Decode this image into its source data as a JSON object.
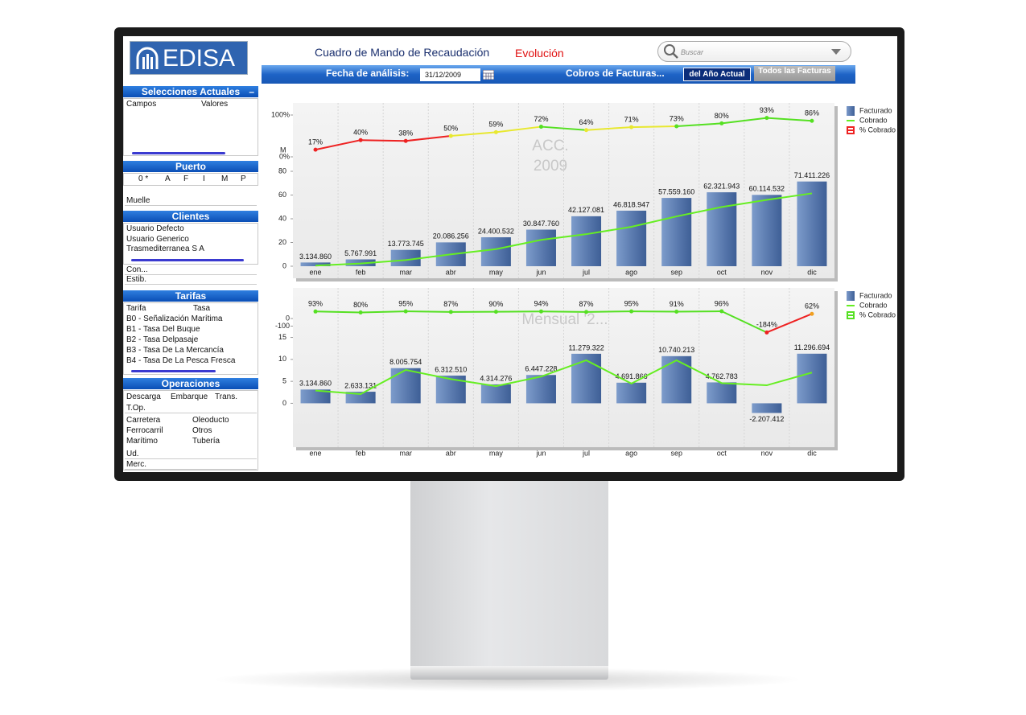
{
  "header": {
    "logo": "EDISA",
    "title": "Cuadro de Mando de Recaudación",
    "view": "Evolución",
    "search_placeholder": "Buscar",
    "date_label": "Fecha de análisis:",
    "date": "31/12/2009",
    "cobros_label": "Cobros de Facturas...",
    "buttons": [
      "del Año Actual",
      "Todos las Facturas"
    ]
  },
  "sidebar": {
    "selecciones": {
      "title": "Selecciones Actuales",
      "columns": [
        "Campos",
        "Valores"
      ]
    },
    "puerto": {
      "title": "Puerto",
      "columns": [
        "0 *",
        "A",
        "F",
        "I",
        "M",
        "P"
      ],
      "dropdown": "Muelle"
    },
    "clientes": {
      "title": "Clientes",
      "items": [
        "Usuario Defecto",
        "Usuario Generico",
        "Trasmediterranea S A"
      ],
      "dropdowns": [
        "Con...",
        "Estib."
      ]
    },
    "tarifas": {
      "title": "Tarifas",
      "columns": [
        "Tarifa",
        "Tasa"
      ],
      "items": [
        "B0 - Señalización Marítima",
        "B1 - Tasa Del Buque",
        "B2 - Tasa Delpasaje",
        "B3 - Tasa De La Mercancía",
        "B4 - Tasa De La Pesca Fresca"
      ]
    },
    "operaciones": {
      "title": "Operaciones",
      "columns": [
        "Descarga",
        "Embarque",
        "Trans."
      ],
      "dropdown": "T.Op.",
      "items": [
        "Carretera",
        "Oleoducto",
        "Ferrocarril",
        "Otros",
        "Marítimo",
        "Tubería"
      ],
      "dropdowns": [
        "Ud.",
        "Merc."
      ]
    }
  },
  "chart_data": [
    {
      "type": "combo",
      "annotation": [
        "ACC.",
        "2009"
      ],
      "y_label": "M",
      "legend": "right",
      "categories": [
        "ene",
        "feb",
        "mar",
        "abr",
        "may",
        "jun",
        "jul",
        "ago",
        "sep",
        "oct",
        "nov",
        "dic"
      ],
      "ylim": [
        0,
        80
      ],
      "yticks": [
        0,
        20,
        40,
        60,
        80
      ],
      "y2lim": [
        0,
        100
      ],
      "y2ticks": [
        {
          "value": 100,
          "label": "100%"
        },
        {
          "value": 0,
          "label": "0%"
        }
      ],
      "series": [
        {
          "name": "Facturado",
          "type": "bar",
          "color": "#5a7db0",
          "values": [
            3.13486,
            5.767991,
            13.773745,
            20.086256,
            24.400532,
            30.84776,
            42.127081,
            46.818947,
            57.55916,
            62.321943,
            60.114532,
            71.411226
          ],
          "value_labels": [
            "3.134.860",
            "5.767.991",
            "13.773.745",
            "20.086.256",
            "24.400.532",
            "30.847.760",
            "42.127.081",
            "46.818.947",
            "57.559.160",
            "62.321.943",
            "60.114.532",
            "71.411.226"
          ]
        },
        {
          "name": "Cobrado",
          "type": "line",
          "color": "#66ee22",
          "values": [
            0.5,
            2.3,
            5.2,
            10,
            14.4,
            22.2,
            27,
            33.2,
            42,
            49.9,
            55.9,
            61.4
          ]
        },
        {
          "name": "% Cobrado",
          "type": "line",
          "axis": "y2",
          "color": "#ee2222",
          "values": [
            17,
            40,
            38,
            50,
            59,
            72,
            64,
            71,
            73,
            80,
            93,
            86
          ],
          "value_labels": [
            "17%",
            "40%",
            "38%",
            "50%",
            "59%",
            "72%",
            "64%",
            "71%",
            "73%",
            "80%",
            "93%",
            "86%"
          ],
          "point_colors": [
            "#ee2222",
            "#ee2222",
            "#ee2222",
            "#e8e830",
            "#e8e830",
            "#55e022",
            "#e8e830",
            "#e8e830",
            "#55e022",
            "#55e022",
            "#55e022",
            "#55e022"
          ]
        }
      ]
    },
    {
      "type": "combo",
      "annotation": [
        "Mensual '2..."
      ],
      "legend": "right",
      "categories": [
        "ene",
        "feb",
        "mar",
        "abr",
        "may",
        "jun",
        "jul",
        "ago",
        "sep",
        "oct",
        "nov",
        "dic"
      ],
      "ylim": [
        -10,
        25
      ],
      "yticks": [
        0,
        5,
        10,
        15
      ],
      "y2lim": [
        -1700,
        330
      ],
      "y2ticks": [
        0,
        -100
      ],
      "series": [
        {
          "name": "Facturado",
          "type": "bar",
          "color": "#5a7db0",
          "values": [
            3.13486,
            2.633131,
            8.005754,
            6.31251,
            4.314276,
            6.447228,
            11.279322,
            4.691866,
            10.740213,
            4.762783,
            -2.207412,
            11.296694
          ],
          "value_labels": [
            "3.134.860",
            "2.633.131",
            "8.005.754",
            "6.312.510",
            "4.314.276",
            "6.447.228",
            "11.279.322",
            "4.691.866",
            "10.740.213",
            "4.762.783",
            "-2.207.412",
            "11.296.694"
          ]
        },
        {
          "name": "Cobrado",
          "type": "line",
          "color": "#66ee22",
          "values": [
            2.9,
            2.1,
            7.6,
            5.5,
            3.9,
            6.1,
            9.8,
            4.5,
            9.8,
            4.6,
            4.1,
            7
          ]
        },
        {
          "name": "% Cobrado",
          "type": "line",
          "axis": "y2",
          "color": "#55e022",
          "values": [
            93,
            80,
            95,
            87,
            90,
            94,
            87,
            95,
            91,
            96,
            -184,
            62
          ],
          "value_labels": [
            "93%",
            "80%",
            "95%",
            "87%",
            "90%",
            "94%",
            "87%",
            "95%",
            "91%",
            "96%",
            "-184%",
            "62%"
          ],
          "point_colors": [
            "#55e022",
            "#55e022",
            "#55e022",
            "#55e022",
            "#55e022",
            "#55e022",
            "#55e022",
            "#55e022",
            "#55e022",
            "#55e022",
            "#ee2222",
            "#f0a020"
          ]
        }
      ]
    }
  ]
}
